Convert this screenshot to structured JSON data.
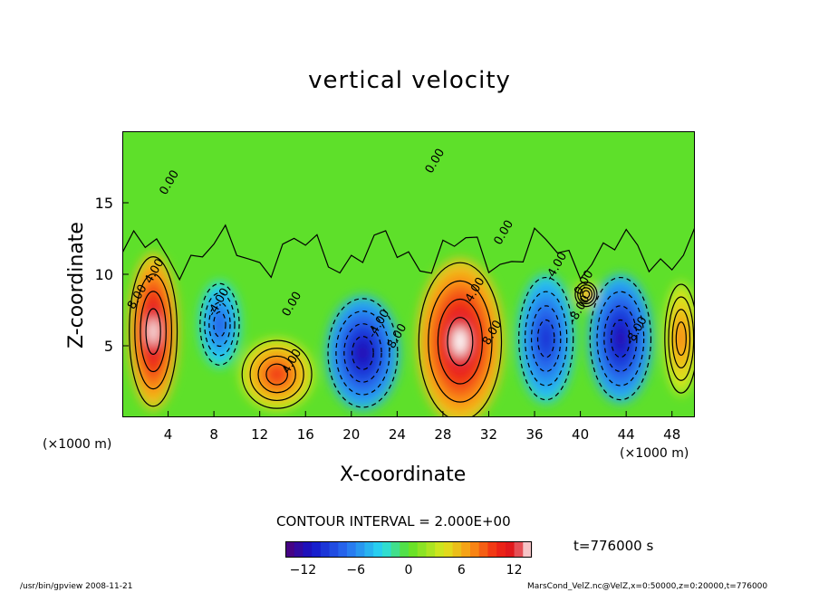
{
  "chart_data": {
    "type": "heatmap",
    "title": "vertical velocity",
    "xlabel": "X-coordinate",
    "ylabel": "Z-coordinate",
    "x_unit_left": "(×1000 m)",
    "x_unit_right": "(×1000 m)",
    "x_ticks": [
      "4",
      "8",
      "12",
      "16",
      "20",
      "24",
      "28",
      "32",
      "36",
      "40",
      "44",
      "48"
    ],
    "y_ticks": [
      "5",
      "10",
      "15"
    ],
    "xlim": [
      0,
      50
    ],
    "ylim": [
      0,
      20
    ],
    "contour_interval_text": "CONTOUR INTERVAL = 2.000E+00",
    "contour_labels": [
      "4.00",
      "8.00",
      "0.00",
      "0.00",
      "0.00",
      "-4.00",
      "4.00",
      "-8.00",
      "4.00",
      "8.00",
      "0.00",
      "-4.00",
      "-8.00",
      "-4.00",
      "-8.00",
      "0.00"
    ],
    "colorbar": {
      "ticks": [
        "−12",
        "−6",
        "0",
        "6",
        "12"
      ],
      "range": [
        -14,
        14
      ]
    },
    "cells": [
      {
        "x": 2.7,
        "z": 6.0,
        "value": 14,
        "rx": 2.2,
        "rz": 5.5
      },
      {
        "x": 13.5,
        "z": 3.0,
        "value": 10,
        "rx": 3.2,
        "rz": 2.5
      },
      {
        "x": 29.5,
        "z": 5.3,
        "value": 14,
        "rx": 3.8,
        "rz": 5.8
      },
      {
        "x": 40.5,
        "z": 8.6,
        "value": 8,
        "rx": 1.0,
        "rz": 0.9
      },
      {
        "x": 48.8,
        "z": 5.5,
        "value": 8,
        "rx": 1.5,
        "rz": 4.0
      },
      {
        "x": 8.5,
        "z": 6.5,
        "value": -8,
        "rx": 1.8,
        "rz": 3.0
      },
      {
        "x": 21.0,
        "z": 4.5,
        "value": -12,
        "rx": 3.2,
        "rz": 4.0
      },
      {
        "x": 37.0,
        "z": 5.5,
        "value": -10,
        "rx": 2.5,
        "rz": 4.5
      },
      {
        "x": 43.5,
        "z": 5.5,
        "value": -12,
        "rx": 2.8,
        "rz": 4.5
      }
    ]
  },
  "time_label": "t=776000 s",
  "footer": {
    "left": "/usr/bin/gpview   2008-11-21",
    "right": "MarsCond_VelZ.nc@VelZ,x=0:50000,z=0:20000,t=776000"
  }
}
